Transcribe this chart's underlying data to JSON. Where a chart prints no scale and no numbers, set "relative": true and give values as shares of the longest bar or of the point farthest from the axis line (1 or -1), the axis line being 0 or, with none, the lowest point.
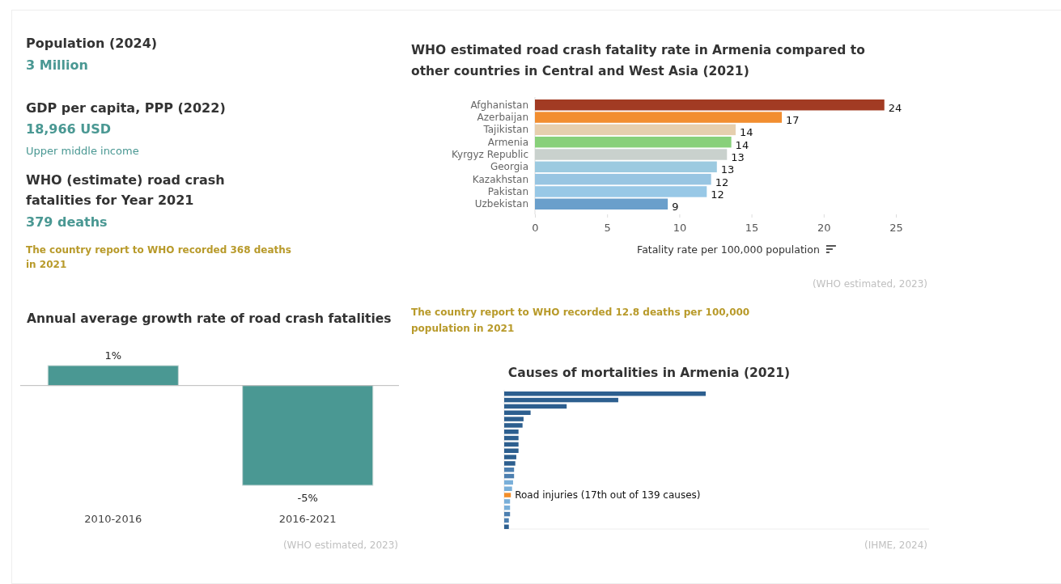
{
  "chart_data": [
    {
      "type": "other",
      "annotations": [
        "Population (2024)",
        "3 Million",
        "GDP per capita, PPP (2022)",
        "18,966 USD",
        "Upper middle income",
        "WHO (estimate) road crash fatalities for Year 2021",
        "379 deaths",
        "The country report to WHO recorded 368 deaths in 2021"
      ]
    },
    {
      "type": "bar",
      "orientation": "horizontal",
      "title": "WHO estimated road crash fatality rate in Armenia compared to other countries in Central and West Asia (2021)",
      "xlabel": "Fatality rate per 100,000 population",
      "categories": [
        "Afghanistan",
        "Azerbaijan",
        "Tajikistan",
        "Armenia",
        "Kyrgyz Republic",
        "Georgia",
        "Kazakhstan",
        "Pakistan",
        "Uzbekistan"
      ],
      "values": [
        24.2,
        17.1,
        13.9,
        13.6,
        13.3,
        12.6,
        12.2,
        11.9,
        9.2
      ],
      "colors": [
        "#a23b23",
        "#f28e30",
        "#e6cfae",
        "#88d07a",
        "#c9d1cd",
        "#9ccae0",
        "#98c5e2",
        "#98c8e6",
        "#6a9fcb"
      ],
      "value_labels": [
        "24",
        "17",
        "14",
        "14",
        "13",
        "13",
        "12",
        "12",
        "9"
      ],
      "xlim": [
        0,
        25
      ],
      "xticks": [
        0,
        5,
        10,
        15,
        20,
        25
      ],
      "annotations": [
        "(WHO estimated, 2023)",
        "The country report to WHO recorded 12.8 deaths per 100,000 population in 2021"
      ]
    },
    {
      "type": "bar",
      "title": "Annual average growth rate of road crash fatalities",
      "categories": [
        "2010-2016",
        "2016-2021"
      ],
      "values": [
        1,
        -5
      ],
      "colors": [
        "#4a9893",
        "#4a9893"
      ],
      "value_labels": [
        "1%",
        "-5%"
      ],
      "annotations": [
        "(WHO estimated, 2023)"
      ]
    },
    {
      "type": "bar",
      "orientation": "horizontal",
      "relative": true,
      "title": "Causes of mortalities in Armenia (2021)",
      "categories": [
        null,
        null,
        null,
        null,
        null,
        null,
        null,
        null,
        null,
        null,
        null,
        null,
        null,
        null,
        null,
        null,
        "Road injuries (17th out of 139 causes)",
        null,
        null,
        null,
        null,
        null
      ],
      "values": [
        1,
        0.566,
        0.31,
        0.131,
        0.096,
        0.091,
        0.071,
        0.071,
        0.071,
        0.071,
        0.06,
        0.055,
        0.049,
        0.049,
        0.044,
        0.039,
        0.033,
        0.029,
        0.029,
        0.029,
        0.023,
        0.023
      ],
      "colors": [
        "#2d5f8f",
        "#2d5f8f",
        "#2d5f8f",
        "#2d5f8f",
        "#2d5f8f",
        "#2d5f8f",
        "#2d5f8f",
        "#2d5f8f",
        "#2d5f8f",
        "#2d5f8f",
        "#2d5f8f",
        "#2d5f8f",
        "#4c7fb0",
        "#4c7fb0",
        "#79afd9",
        "#79afd9",
        "#f28e2b",
        "#79afd9",
        "#79afd9",
        "#4c7fb0",
        "#4c7fb0",
        "#2d5f8f"
      ],
      "annotations": [
        "(IHME, 2024)"
      ]
    }
  ]
}
